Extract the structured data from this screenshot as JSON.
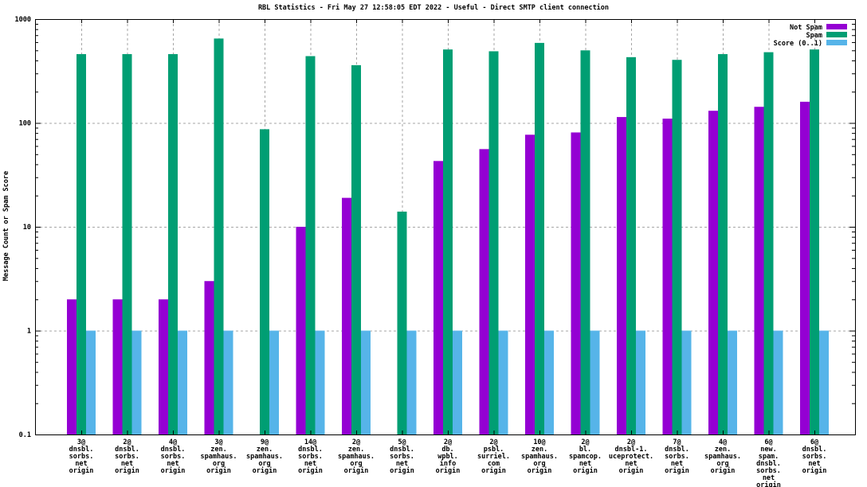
{
  "title": "RBL Statistics - Fri May 27 12:58:05 EDT 2022 - Useful - Direct SMTP client connection",
  "y_axis": {
    "label": "Message Count or Spam Score",
    "scale": "log",
    "tick_labels": [
      "0.1",
      "1",
      "10",
      "100",
      "1000"
    ],
    "min": 0.1,
    "max": 1000
  },
  "legend": {
    "position": "top-right",
    "entries": [
      {
        "label": "Not Spam",
        "color": "#9400D3"
      },
      {
        "label": "Spam",
        "color": "#009E73"
      },
      {
        "label": "Score (0..1)",
        "color": "#56B4E9"
      }
    ]
  },
  "colors": {
    "not_spam": "#9400D3",
    "spam": "#009E73",
    "score": "#56B4E9",
    "grid": "#a6a6a6",
    "border": "#000000"
  },
  "chart_data": {
    "type": "bar",
    "scale": "log",
    "ylim": [
      0.1,
      1000
    ],
    "grid_values": [
      1,
      10,
      100
    ],
    "title": "RBL Statistics - Fri May 27 12:58:05 EDT 2022 - Useful - Direct SMTP client connection",
    "ylabel": "Message Count or Spam Score",
    "legend_position": "top-right",
    "categories": [
      [
        "3@",
        "dnsbl.",
        "sorbs.",
        "net",
        "origin"
      ],
      [
        "2@",
        "dnsbl.",
        "sorbs.",
        "net",
        "origin"
      ],
      [
        "4@",
        "dnsbl.",
        "sorbs.",
        "net",
        "origin"
      ],
      [
        "3@",
        "zen.",
        "spamhaus.",
        "org",
        "origin"
      ],
      [
        "9@",
        "zen.",
        "spamhaus.",
        "org",
        "origin"
      ],
      [
        "14@",
        "dnsbl.",
        "sorbs.",
        "net",
        "origin"
      ],
      [
        "2@",
        "zen.",
        "spamhaus.",
        "org",
        "origin"
      ],
      [
        "5@",
        "dnsbl.",
        "sorbs.",
        "net",
        "origin"
      ],
      [
        "2@",
        "db.",
        "wpbl.",
        "info",
        "origin"
      ],
      [
        "2@",
        "psbl.",
        "surriel.",
        "com",
        "origin"
      ],
      [
        "10@",
        "zen.",
        "spamhaus.",
        "org",
        "origin"
      ],
      [
        "2@",
        "bl.",
        "spamcop.",
        "net",
        "origin"
      ],
      [
        "2@",
        "dnsbl-1.",
        "uceprotect.",
        "net",
        "origin"
      ],
      [
        "7@",
        "dnsbl.",
        "sorbs.",
        "net",
        "origin"
      ],
      [
        "4@",
        "zen.",
        "spamhaus.",
        "org",
        "origin"
      ],
      [
        "6@",
        "new.",
        "spam.",
        "dnsbl.",
        "sorbs.",
        "net",
        "origin"
      ],
      [
        "6@",
        "dnsbl.",
        "sorbs.",
        "net",
        "origin"
      ]
    ],
    "series": [
      {
        "name": "Not Spam",
        "color": "#9400D3",
        "values": [
          2,
          2,
          2,
          3,
          0,
          10,
          19,
          0,
          43,
          56,
          77,
          81,
          114,
          110,
          131,
          143,
          160
        ]
      },
      {
        "name": "Spam",
        "color": "#009E73",
        "values": [
          460,
          460,
          460,
          650,
          87,
          440,
          360,
          14,
          510,
          490,
          590,
          500,
          430,
          405,
          460,
          480,
          510
        ]
      },
      {
        "name": "Score (0..1)",
        "color": "#56B4E9",
        "values": [
          1,
          1,
          1,
          1,
          1,
          1,
          1,
          1,
          1,
          1,
          1,
          1,
          1,
          1,
          1,
          1,
          1
        ]
      }
    ]
  }
}
